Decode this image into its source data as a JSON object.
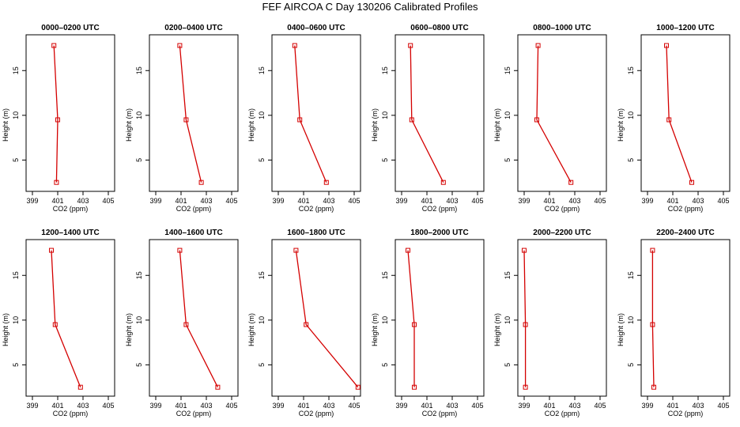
{
  "figure_title": "FEF AIRCOA C  Day 130206  Calibrated Profiles",
  "chart_data": {
    "type": "line",
    "title": "FEF AIRCOA C  Day 130206  Calibrated Profiles",
    "xlabel": "CO2 (ppm)",
    "ylabel": "Height (m)",
    "xlim": [
      398.5,
      405.5
    ],
    "ylim": [
      1.5,
      19
    ],
    "xticks": [
      399,
      401,
      403,
      405
    ],
    "yticks": [
      5,
      10,
      15
    ],
    "heights": [
      17.8,
      9.5,
      2.5
    ],
    "series_color": "#d40000",
    "panels": [
      {
        "name": "0000–0200 UTC",
        "co2": [
          400.7,
          401.0,
          400.9
        ]
      },
      {
        "name": "0200–0400 UTC",
        "co2": [
          400.9,
          401.4,
          402.6
        ]
      },
      {
        "name": "0400–0600 UTC",
        "co2": [
          400.3,
          400.7,
          402.8
        ]
      },
      {
        "name": "0600–0800 UTC",
        "co2": [
          399.7,
          399.8,
          402.3
        ]
      },
      {
        "name": "0800–1000 UTC",
        "co2": [
          400.1,
          400.0,
          402.7
        ]
      },
      {
        "name": "1000–1200 UTC",
        "co2": [
          400.5,
          400.7,
          402.5
        ]
      },
      {
        "name": "1200–1400 UTC",
        "co2": [
          400.5,
          400.8,
          402.8
        ]
      },
      {
        "name": "1400–1600 UTC",
        "co2": [
          400.9,
          401.4,
          403.9
        ]
      },
      {
        "name": "1600–1800 UTC",
        "co2": [
          400.4,
          401.2,
          405.3
        ]
      },
      {
        "name": "1800–2000 UTC",
        "co2": [
          399.5,
          400.0,
          400.0
        ]
      },
      {
        "name": "2000–2200 UTC",
        "co2": [
          399.0,
          399.1,
          399.1
        ]
      },
      {
        "name": "2200–2400 UTC",
        "co2": [
          399.4,
          399.4,
          399.5
        ]
      }
    ]
  }
}
